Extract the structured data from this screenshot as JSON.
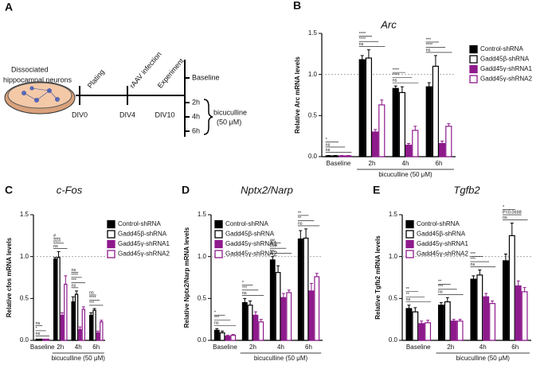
{
  "diagram": {
    "panel": "A",
    "dish_label": [
      "Dissociated",
      "hippocampal neurons"
    ],
    "steps": [
      "Plating",
      "rAAV infection",
      "Experiment"
    ],
    "days": [
      "DIV0",
      "DIV4",
      "DIV10"
    ],
    "timepoints": [
      "Baseline",
      "2h",
      "4h",
      "6h"
    ],
    "treatment": [
      "bicuculline",
      "(50 μM)"
    ]
  },
  "chart_data": [
    {
      "type": "bar",
      "panel": "B",
      "title": "Arc",
      "y_label": "Relative Arc mRNA levels",
      "x_label": "bicuculline (50 μM)",
      "categories": [
        "Baseline",
        "2h",
        "4h",
        "6h"
      ],
      "series": [
        {
          "name": "Control-shRNA",
          "color": "#000000",
          "fill": "#000000",
          "values": [
            0.01,
            1.18,
            0.83,
            0.85
          ],
          "errors": [
            0.005,
            0.05,
            0.03,
            0.05
          ]
        },
        {
          "name": "Gadd45β-shRNA",
          "color": "#000000",
          "fill": "#ffffff",
          "values": [
            0.01,
            1.2,
            0.78,
            1.1
          ],
          "errors": [
            0.005,
            0.1,
            0.07,
            0.13
          ]
        },
        {
          "name": "Gadd45γ-shRNA1",
          "color": "#8e1a8c",
          "fill": "#8e1a8c",
          "values": [
            0.01,
            0.3,
            0.14,
            0.16
          ],
          "errors": [
            0.005,
            0.03,
            0.02,
            0.03
          ]
        },
        {
          "name": "Gadd45γ-shRNA2",
          "color": "#8e1a8c",
          "fill": "#ffffff",
          "values": [
            0.01,
            0.63,
            0.32,
            0.37
          ],
          "errors": [
            0.005,
            0.06,
            0.05,
            0.03
          ]
        }
      ],
      "ylim": [
        0,
        1.5
      ],
      "yticks": [
        {
          "value": 0,
          "label": "0.0"
        },
        {
          "value": 0.5,
          "label": "0.5"
        },
        {
          "value": 1,
          "label": "1.0"
        },
        {
          "value": 1.5,
          "label": "1.5"
        }
      ],
      "reference_line": 1,
      "legend": "outside right",
      "significance": [
        [
          "*",
          "ns",
          "ns"
        ],
        [
          "****",
          "****",
          "ns"
        ],
        [
          "****",
          "****",
          "ns"
        ],
        [
          "***",
          "****",
          "ns"
        ]
      ]
    },
    {
      "type": "bar",
      "panel": "C",
      "title": "c-Fos",
      "y_label": "Relative cfos mRNA levels",
      "x_label": "bicuculline (50 μM)",
      "categories": [
        "Baseline",
        "2h",
        "4h",
        "6h"
      ],
      "series": [
        {
          "name": "Control-shRNA",
          "color": "#000000",
          "fill": "#000000",
          "values": [
            0.01,
            0.97,
            0.46,
            0.3
          ],
          "errors": [
            0.005,
            0.02,
            0.06,
            0.03
          ]
        },
        {
          "name": "Gadd45β-shRNA",
          "color": "#000000",
          "fill": "#ffffff",
          "values": [
            0.01,
            0.99,
            0.55,
            0.36
          ],
          "errors": [
            0.005,
            0.07,
            0.04,
            0.02
          ]
        },
        {
          "name": "Gadd45γ-shRNA1",
          "color": "#8e1a8c",
          "fill": "#8e1a8c",
          "values": [
            0.01,
            0.3,
            0.13,
            0.09
          ],
          "errors": [
            0.005,
            0.03,
            0.03,
            0.02
          ]
        },
        {
          "name": "Gadd45γ-shRNA2",
          "color": "#8e1a8c",
          "fill": "#ffffff",
          "values": [
            0.01,
            0.67,
            0.37,
            0.22
          ],
          "errors": [
            0.005,
            0.1,
            0.03,
            0.02
          ]
        }
      ],
      "ylim": [
        0,
        1.5
      ],
      "yticks": [
        {
          "value": 0,
          "label": "0.0"
        },
        {
          "value": 0.5,
          "label": "0.5"
        },
        {
          "value": 1,
          "label": "1.0"
        },
        {
          "value": 1.5,
          "label": "1.5"
        }
      ],
      "reference_line": 1,
      "legend": "upper right",
      "significance": [
        [
          "ns",
          "*",
          "ns"
        ],
        [
          "#",
          "###",
          "ns"
        ],
        [
          "ns",
          "****",
          "***",
          "ns"
        ],
        [
          "ns",
          "****",
          "***"
        ]
      ]
    },
    {
      "type": "bar",
      "panel": "D",
      "title": "Nptx2/Narp",
      "y_label": "Relative Nptx2/Narp mRNA levels",
      "x_label": "bicuculline (50 μM)",
      "categories": [
        "Baseline",
        "2h",
        "4h",
        "6h"
      ],
      "series": [
        {
          "name": "Control-shRNA",
          "color": "#000000",
          "fill": "#000000",
          "values": [
            0.12,
            0.45,
            0.96,
            1.21
          ],
          "errors": [
            0.02,
            0.05,
            0.04,
            0.1
          ]
        },
        {
          "name": "Gadd45β-shRNA",
          "color": "#000000",
          "fill": "#ffffff",
          "values": [
            0.09,
            0.42,
            0.81,
            1.22
          ],
          "errors": [
            0.02,
            0.05,
            0.08,
            0.11
          ]
        },
        {
          "name": "Gadd45γ-shRNA1",
          "color": "#8e1a8c",
          "fill": "#8e1a8c",
          "values": [
            0.05,
            0.3,
            0.51,
            0.59
          ],
          "errors": [
            0.01,
            0.04,
            0.05,
            0.09
          ]
        },
        {
          "name": "Gadd45γ-shRNA2",
          "color": "#8e1a8c",
          "fill": "#ffffff",
          "values": [
            0.06,
            0.22,
            0.57,
            0.76
          ],
          "errors": [
            0.01,
            0.03,
            0.03,
            0.04
          ]
        }
      ],
      "ylim": [
        0,
        1.5
      ],
      "yticks": [
        {
          "value": 0,
          "label": "0.0"
        },
        {
          "value": 0.5,
          "label": "0.5"
        },
        {
          "value": 1,
          "label": "1.0"
        },
        {
          "value": 1.5,
          "label": "1.5"
        }
      ],
      "reference_line": 1,
      "legend": "upper left",
      "significance": [
        [
          "*",
          "***",
          "ns"
        ],
        [
          "*",
          "***",
          "ns"
        ],
        [
          "##",
          "###",
          "ns"
        ],
        [
          "**",
          "**",
          "ns"
        ]
      ]
    },
    {
      "type": "bar",
      "panel": "E",
      "title": "Tgfb2",
      "y_label": "Relative Tgfb2 mRNA levels",
      "x_label": "bicuculline (50 μM)",
      "categories": [
        "Baseline",
        "2h",
        "4h",
        "6h"
      ],
      "series": [
        {
          "name": "Control-shRNA",
          "color": "#000000",
          "fill": "#000000",
          "values": [
            0.38,
            0.42,
            0.73,
            0.95
          ],
          "errors": [
            0.04,
            0.03,
            0.04,
            0.08
          ]
        },
        {
          "name": "Gadd45β-shRNA",
          "color": "#000000",
          "fill": "#ffffff",
          "values": [
            0.34,
            0.46,
            0.78,
            1.25
          ],
          "errors": [
            0.05,
            0.05,
            0.06,
            0.15
          ]
        },
        {
          "name": "Gadd45γ-shRNA1",
          "color": "#8e1a8c",
          "fill": "#8e1a8c",
          "values": [
            0.2,
            0.23,
            0.52,
            0.65
          ],
          "errors": [
            0.03,
            0.02,
            0.04,
            0.06
          ]
        },
        {
          "name": "Gadd45γ-shRNA2",
          "color": "#8e1a8c",
          "fill": "#ffffff",
          "values": [
            0.21,
            0.23,
            0.44,
            0.58
          ],
          "errors": [
            0.03,
            0.02,
            0.03,
            0.05
          ]
        }
      ],
      "ylim": [
        0,
        1.5
      ],
      "yticks": [
        {
          "value": 0,
          "label": "0.0"
        },
        {
          "value": 0.5,
          "label": "0.5"
        },
        {
          "value": 1,
          "label": "1.0"
        },
        {
          "value": 1.5,
          "label": "1.5"
        }
      ],
      "reference_line": 1,
      "legend": "upper left",
      "significance": [
        [
          "**",
          "**",
          "ns"
        ],
        [
          "**",
          "***",
          "ns"
        ],
        [
          "***",
          "***",
          "ns"
        ],
        [
          "*",
          "P=0.0698",
          "ns"
        ]
      ]
    }
  ]
}
